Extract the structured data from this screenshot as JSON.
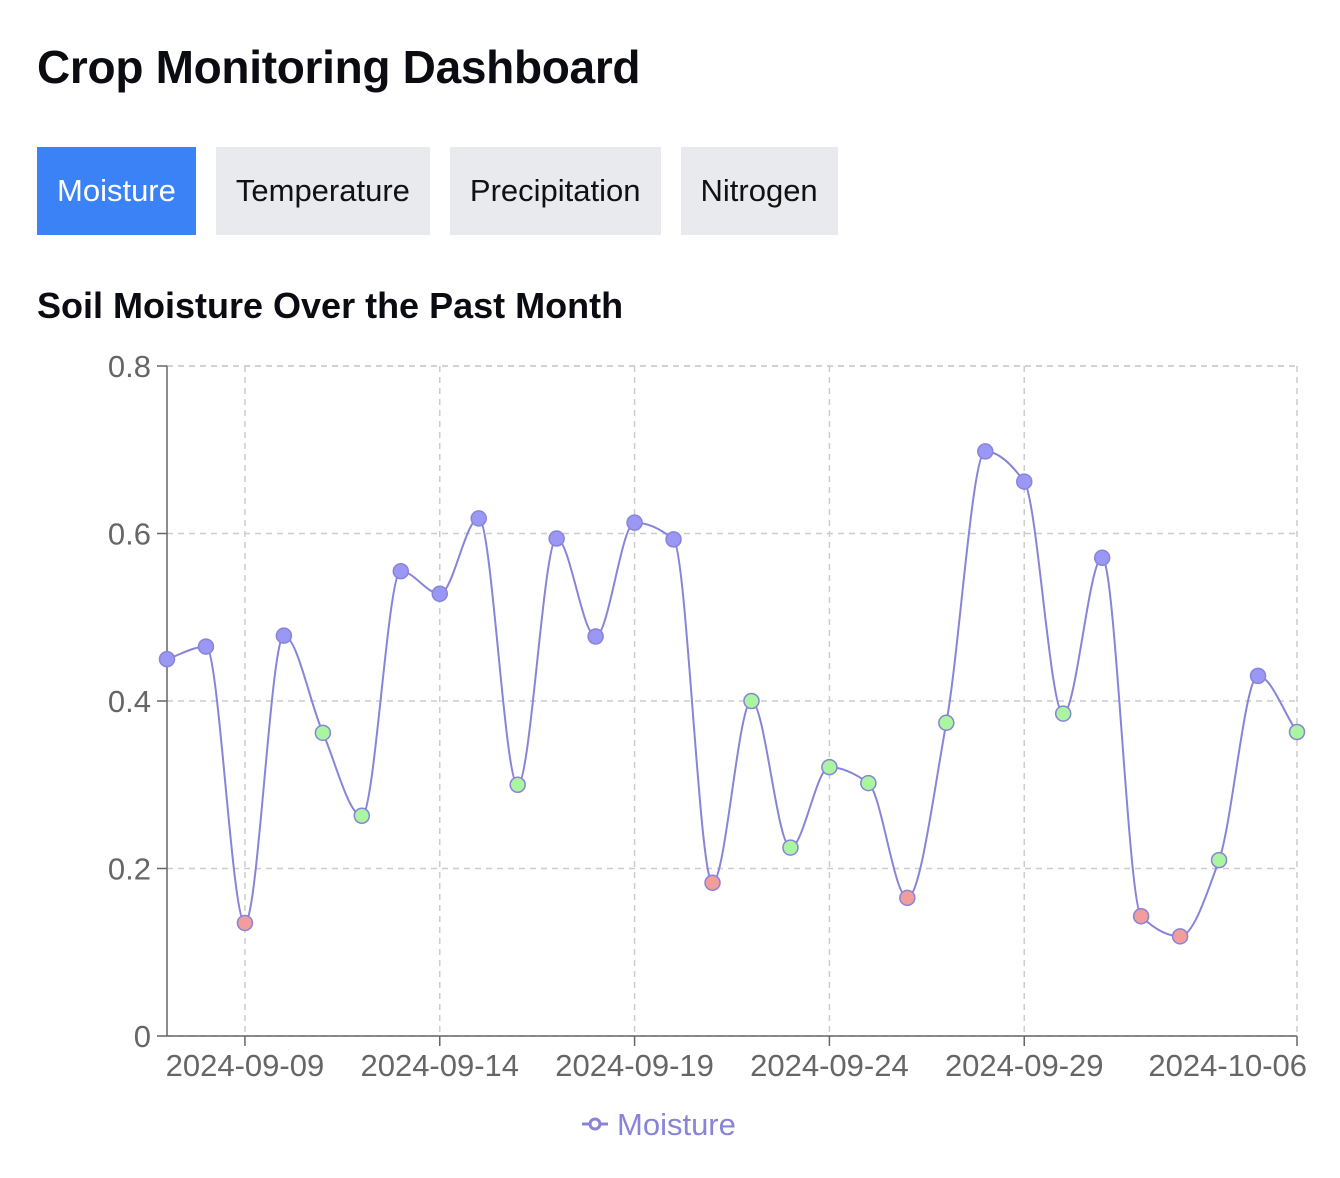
{
  "header": {
    "title": "Crop Monitoring Dashboard"
  },
  "tabs": [
    {
      "label": "Moisture",
      "active": true
    },
    {
      "label": "Temperature",
      "active": false
    },
    {
      "label": "Precipitation",
      "active": false
    },
    {
      "label": "Nitrogen",
      "active": false
    }
  ],
  "colors": {
    "active_tab": "#3b82f6",
    "line": "#8884d8",
    "high_point": "#9b98f5",
    "mid_point": "#a9f5a0",
    "low_point": "#f29c9c",
    "grid": "#cccccc"
  },
  "chart_data": {
    "type": "line",
    "title": "Soil Moisture Over the Past Month",
    "x_ticks": [
      "2024-09-09",
      "2024-09-14",
      "2024-09-19",
      "2024-09-24",
      "2024-09-29",
      "2024-10-06"
    ],
    "y_ticks": [
      "0",
      "0.2",
      "0.4",
      "0.6",
      "0.8"
    ],
    "ylim": [
      0,
      0.8
    ],
    "grid": true,
    "legend_position": "bottom",
    "series": [
      {
        "name": "Moisture",
        "x": [
          "2024-09-07",
          "2024-09-08",
          "2024-09-09",
          "2024-09-10",
          "2024-09-11",
          "2024-09-12",
          "2024-09-13",
          "2024-09-14",
          "2024-09-15",
          "2024-09-16",
          "2024-09-17",
          "2024-09-18",
          "2024-09-19",
          "2024-09-20",
          "2024-09-21",
          "2024-09-22",
          "2024-09-23",
          "2024-09-24",
          "2024-09-25",
          "2024-09-26",
          "2024-09-27",
          "2024-09-28",
          "2024-09-29",
          "2024-09-30",
          "2024-10-01",
          "2024-10-02",
          "2024-10-03",
          "2024-10-04",
          "2024-10-05",
          "2024-10-06"
        ],
        "values": [
          0.45,
          0.465,
          0.135,
          0.478,
          0.362,
          0.263,
          0.555,
          0.528,
          0.618,
          0.3,
          0.594,
          0.477,
          0.613,
          0.593,
          0.183,
          0.4,
          0.225,
          0.321,
          0.302,
          0.165,
          0.374,
          0.698,
          0.662,
          0.385,
          0.571,
          0.143,
          0.119,
          0.21,
          0.43,
          0.363
        ]
      }
    ]
  }
}
